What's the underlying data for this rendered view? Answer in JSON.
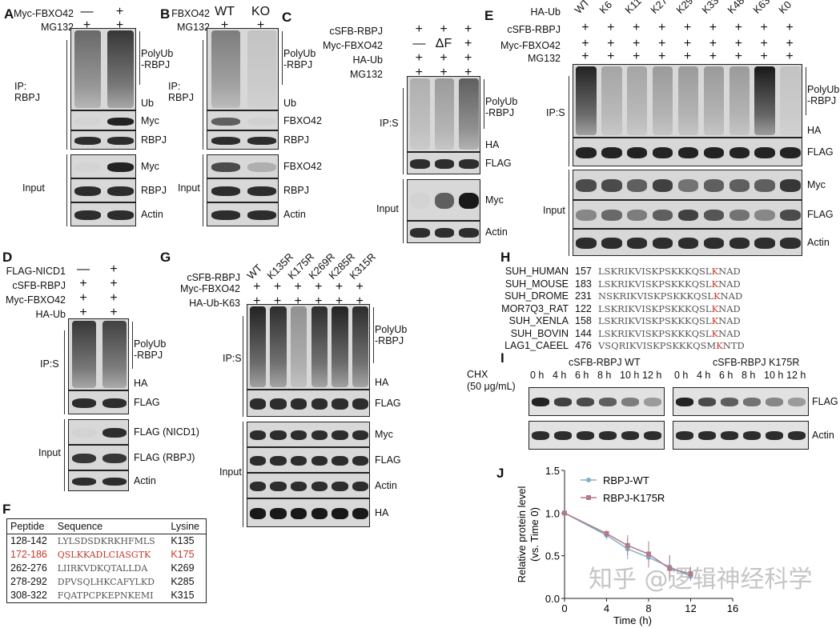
{
  "panels": {
    "A": {
      "letter": "A",
      "conditions": [
        {
          "label": "Myc-FBXO42",
          "values": [
            "—",
            "+"
          ]
        },
        {
          "label": "MG132",
          "values": [
            "+",
            "+"
          ]
        }
      ],
      "blots": [
        {
          "label": "PolyUb\n-RBPJ",
          "sub": "Ub",
          "smear": true,
          "intensity": [
            0.55,
            0.8
          ]
        },
        {
          "label": "Myc",
          "intensity": [
            0.02,
            0.9
          ]
        },
        {
          "label": "RBPJ",
          "intensity": [
            0.85,
            0.85
          ]
        },
        {
          "label": "Myc",
          "intensity": [
            0.02,
            0.9
          ]
        },
        {
          "label": "RBPJ",
          "intensity": [
            0.85,
            0.85
          ]
        },
        {
          "label": "Actin",
          "intensity": [
            0.85,
            0.85
          ]
        }
      ],
      "groups": [
        {
          "label": "IP:\nRBPJ"
        },
        {
          "label": "Input"
        }
      ]
    },
    "B": {
      "letter": "B",
      "conditions": [
        {
          "label": "FBXO42",
          "values": [
            "WT",
            "KO"
          ]
        },
        {
          "label": "MG132",
          "values": [
            "+",
            "+"
          ]
        }
      ],
      "blots": [
        {
          "label": "PolyUb\n-RBPJ",
          "sub": "Ub",
          "smear": true,
          "intensity": [
            0.45,
            0.1
          ]
        },
        {
          "label": "FBXO42",
          "intensity": [
            0.6,
            0.03
          ]
        },
        {
          "label": "RBPJ",
          "intensity": [
            0.85,
            0.85
          ]
        },
        {
          "label": "FBXO42",
          "intensity": [
            0.7,
            0.2
          ]
        },
        {
          "label": "RBPJ",
          "intensity": [
            0.85,
            0.85
          ]
        },
        {
          "label": "Actin",
          "intensity": [
            0.85,
            0.85
          ]
        }
      ],
      "groups": [
        {
          "label": "IP:\nRBPJ"
        },
        {
          "label": "Input"
        }
      ]
    },
    "C": {
      "letter": "C",
      "conditions": [
        {
          "label": "cSFB-RBPJ",
          "values": [
            "+",
            "+",
            "+"
          ]
        },
        {
          "label": "Myc-FBXO42",
          "values": [
            "—",
            "ΔF",
            "+"
          ]
        },
        {
          "label": "HA-Ub",
          "values": [
            "+",
            "+",
            "+"
          ]
        },
        {
          "label": "MG132",
          "values": [
            "+",
            "+",
            "+"
          ]
        }
      ],
      "blots": [
        {
          "label": "PolyUb\n-RBPJ",
          "sub": "HA",
          "smear": true,
          "intensity": [
            0.2,
            0.3,
            0.6
          ]
        },
        {
          "label": "FLAG",
          "intensity": [
            0.85,
            0.85,
            0.85
          ]
        },
        {
          "label": "Myc",
          "intensity": [
            0.02,
            0.6,
            0.95
          ]
        },
        {
          "label": "Actin",
          "intensity": [
            0.85,
            0.85,
            0.85
          ]
        }
      ],
      "groups": [
        {
          "label": "IP:S"
        },
        {
          "label": "Input"
        }
      ]
    },
    "D": {
      "letter": "D",
      "conditions": [
        {
          "label": "FLAG-NICD1",
          "values": [
            "—",
            "+"
          ]
        },
        {
          "label": "cSFB-RBPJ",
          "values": [
            "+",
            "+"
          ]
        },
        {
          "label": "Myc-FBXO42",
          "values": [
            "+",
            "+"
          ]
        },
        {
          "label": "HA-Ub",
          "values": [
            "+",
            "+"
          ]
        }
      ],
      "blots": [
        {
          "label": "PolyUb\n-RBPJ",
          "sub": "HA",
          "smear": true,
          "intensity": [
            0.8,
            0.75
          ]
        },
        {
          "label": "FLAG",
          "intensity": [
            0.85,
            0.85
          ]
        },
        {
          "label": "FLAG (NICD1)",
          "intensity": [
            0.02,
            0.85
          ]
        },
        {
          "label": "FLAG (RBPJ)",
          "intensity": [
            0.8,
            0.8
          ]
        },
        {
          "label": "Actin",
          "intensity": [
            0.85,
            0.85
          ]
        }
      ],
      "groups": [
        {
          "label": "IP:S"
        },
        {
          "label": "Input"
        }
      ]
    },
    "E": {
      "letter": "E",
      "lanes": [
        "WT",
        "K6",
        "K11",
        "K27",
        "K29",
        "K33",
        "K48",
        "K63",
        "K0"
      ],
      "conditions": [
        {
          "label": "HA-Ub",
          "values": []
        },
        {
          "label": "cSFB-RBPJ",
          "values": [
            "+",
            "+",
            "+",
            "+",
            "+",
            "+",
            "+",
            "+",
            "+"
          ]
        },
        {
          "label": "Myc-FBXO42",
          "values": [
            "+",
            "+",
            "+",
            "+",
            "+",
            "+",
            "+",
            "+",
            "+"
          ]
        },
        {
          "label": "MG132",
          "values": [
            "+",
            "+",
            "+",
            "+",
            "+",
            "+",
            "+",
            "+",
            "+"
          ]
        }
      ],
      "blots": [
        {
          "label": "PolyUb\n-RBPJ",
          "sub": "HA",
          "smear": true,
          "intensity": [
            0.9,
            0.25,
            0.25,
            0.3,
            0.3,
            0.3,
            0.3,
            0.95,
            0.1
          ]
        },
        {
          "label": "FLAG",
          "intensity": [
            0.9,
            0.9,
            0.9,
            0.9,
            0.9,
            0.9,
            0.9,
            0.9,
            0.9
          ]
        },
        {
          "label": "Myc",
          "intensity": [
            0.7,
            0.7,
            0.6,
            0.75,
            0.5,
            0.6,
            0.6,
            0.6,
            0.8
          ]
        },
        {
          "label": "FLAG",
          "intensity": [
            0.4,
            0.55,
            0.45,
            0.6,
            0.75,
            0.65,
            0.5,
            0.4,
            0.7
          ]
        },
        {
          "label": "Actin",
          "intensity": [
            0.85,
            0.85,
            0.85,
            0.85,
            0.85,
            0.85,
            0.85,
            0.85,
            0.85
          ]
        }
      ],
      "groups": [
        {
          "label": "IP:S"
        },
        {
          "label": "Input"
        }
      ]
    },
    "G": {
      "letter": "G",
      "lanes": [
        "WT",
        "K135R",
        "K175R",
        "K269R",
        "K285R",
        "K315R"
      ],
      "conditions": [
        {
          "label": "cSFB-RBPJ",
          "values": []
        },
        {
          "label": "Myc-FBXO42",
          "values": [
            "+",
            "+",
            "+",
            "+",
            "+",
            "+"
          ]
        },
        {
          "label": "HA-Ub-K63",
          "values": [
            "+",
            "+",
            "+",
            "+",
            "+",
            "+"
          ]
        }
      ],
      "blots": [
        {
          "label": "PolyUb\n-RBPJ",
          "sub": "HA",
          "smear": true,
          "intensity": [
            0.9,
            0.85,
            0.35,
            0.85,
            0.9,
            0.85
          ]
        },
        {
          "label": "FLAG",
          "intensity": [
            0.85,
            0.85,
            0.85,
            0.85,
            0.85,
            0.85
          ]
        },
        {
          "label": "Myc",
          "intensity": [
            0.85,
            0.85,
            0.85,
            0.85,
            0.85,
            0.85
          ]
        },
        {
          "label": "FLAG",
          "intensity": [
            0.85,
            0.85,
            0.85,
            0.85,
            0.85,
            0.85
          ]
        },
        {
          "label": "Actin",
          "intensity": [
            0.85,
            0.85,
            0.85,
            0.85,
            0.85,
            0.85
          ]
        },
        {
          "label": "HA",
          "intensity": [
            0.95,
            0.95,
            0.95,
            0.95,
            0.95,
            0.95
          ]
        }
      ],
      "groups": [
        {
          "label": "IP:S"
        },
        {
          "label": "Input"
        }
      ]
    }
  },
  "F": {
    "letter": "F",
    "headers": [
      "Peptide",
      "Sequence",
      "Lysine"
    ],
    "rows": [
      [
        "128-142",
        "LYLSDSDKRKHFMLS",
        "K135"
      ],
      [
        "172-186",
        "QSLKKADLCIASGTK",
        "K175"
      ],
      [
        "262-276",
        "LIIRKVDKQTALLDA",
        "K269"
      ],
      [
        "278-292",
        "DPVSQLHKCAFYLKD",
        "K285"
      ],
      [
        "308-322",
        "FQATPCPKEPNKEMI",
        "K315"
      ]
    ],
    "highlight_color": "#c0392b"
  },
  "H": {
    "letter": "H",
    "rows": [
      {
        "name": "SUH_HUMAN",
        "pos": "157",
        "pre": "LSKRIKVISKPSKKKQSL",
        "k": "K",
        "post": "NAD"
      },
      {
        "name": "SUH_MOUSE",
        "pos": "183",
        "pre": "LSKRIKVISKPSKKKQSL",
        "k": "K",
        "post": "NAD"
      },
      {
        "name": "SUH_DROME",
        "pos": "231",
        "pre": "NSKRIKVISKPSKKKQSL",
        "k": "K",
        "post": "NAD"
      },
      {
        "name": "MOR7Q3_RAT",
        "pos": "122",
        "pre": "LSKRIKVISKPSKKKQSL",
        "k": "K",
        "post": "NAD"
      },
      {
        "name": "SUH_XENLA",
        "pos": "158",
        "pre": "LSKRIKVISKPSKKKQSL",
        "k": "K",
        "post": "NAD"
      },
      {
        "name": "SUH_BOVIN",
        "pos": "144",
        "pre": "LSKRIKVISKPSKKKQSL",
        "k": "K",
        "post": "NAD"
      },
      {
        "name": "LAG1_CAEEL",
        "pos": "476",
        "pre": "VSQRIKVISKPSKKKQSM",
        "k": "K",
        "post": "NTD"
      }
    ]
  },
  "I": {
    "letter": "I",
    "treatment": "CHX\n(50 μg/mL)",
    "groups": [
      "cSFB-RBPJ WT",
      "cSFB-RBPJ K175R"
    ],
    "times": [
      "0 h",
      "4 h",
      "6 h",
      "8 h",
      "10 h",
      "12 h"
    ],
    "blots": [
      {
        "label": "FLAG",
        "wt": [
          0.9,
          0.75,
          0.7,
          0.6,
          0.45,
          0.3
        ],
        "mut": [
          0.9,
          0.7,
          0.6,
          0.5,
          0.4,
          0.3
        ]
      },
      {
        "label": "Actin",
        "wt": [
          0.85,
          0.85,
          0.85,
          0.85,
          0.85,
          0.85
        ],
        "mut": [
          0.85,
          0.85,
          0.85,
          0.85,
          0.85,
          0.85
        ]
      }
    ]
  },
  "chart_data": {
    "type": "line",
    "letter": "J",
    "xlabel": "Time (h)",
    "ylabel": "Relative protein level\n(vs. Time 0)",
    "xlim": [
      0,
      16
    ],
    "ylim": [
      0,
      1.5
    ],
    "xticks": [
      0,
      4,
      8,
      12,
      16
    ],
    "yticks": [
      "0.0",
      "0.5",
      "1.0",
      "1.5"
    ],
    "legend": "top-left",
    "x": [
      0,
      4,
      6,
      8,
      10,
      12
    ],
    "series": [
      {
        "name": "RBPJ-WT",
        "color": "#7fb0c8",
        "values": [
          1.0,
          0.74,
          0.58,
          0.48,
          0.37,
          0.26
        ],
        "err": [
          0,
          0.05,
          0.12,
          0.12,
          0.14,
          0.03
        ]
      },
      {
        "name": "RBPJ-K175R",
        "color": "#b07a8a",
        "values": [
          1.0,
          0.76,
          0.62,
          0.52,
          0.35,
          0.29
        ],
        "err": [
          0,
          0.04,
          0.12,
          0.15,
          0.15,
          0.08
        ]
      }
    ]
  },
  "watermark": "知乎 @逻辑神经科学"
}
